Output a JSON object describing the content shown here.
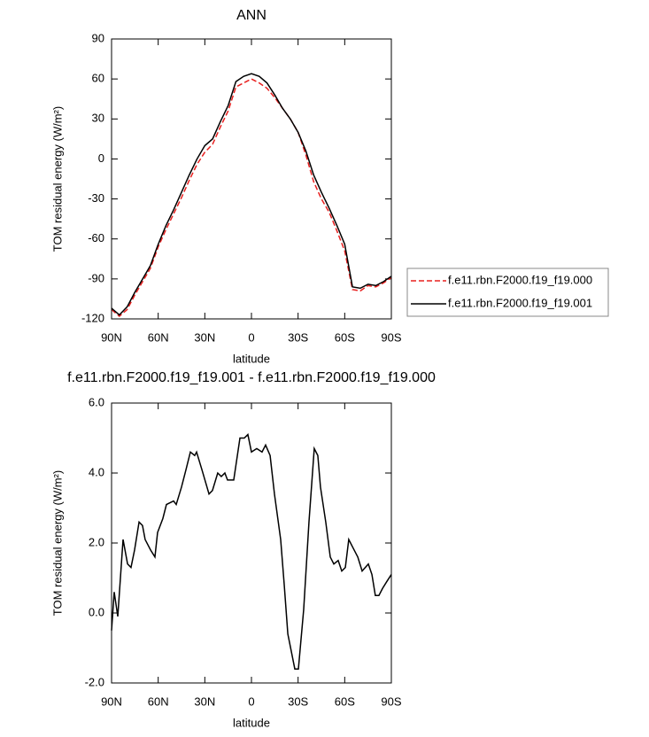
{
  "chart_data": [
    {
      "type": "line",
      "title": "ANN",
      "xlabel": "latitude",
      "ylabel": "TOM residual energy (W/m²)",
      "xlim": [
        90,
        -90
      ],
      "xticks": [
        {
          "value": 90,
          "label": "90N"
        },
        {
          "value": 60,
          "label": "60N"
        },
        {
          "value": 30,
          "label": "30N"
        },
        0,
        {
          "value": -30,
          "label": "30S"
        },
        {
          "value": -60,
          "label": "60S"
        },
        {
          "value": -90,
          "label": "90S"
        }
      ],
      "ylim": [
        -120,
        90
      ],
      "yticks": [
        -120,
        -90,
        -60,
        -30,
        0,
        30,
        60,
        90
      ],
      "legend": "right",
      "x": [
        90,
        85,
        80,
        75,
        70,
        65,
        60,
        55,
        50,
        45,
        40,
        35,
        30,
        25,
        20,
        15,
        10,
        5,
        0,
        -5,
        -10,
        -15,
        -20,
        -25,
        -30,
        -35,
        -40,
        -45,
        -50,
        -55,
        -60,
        -65,
        -70,
        -75,
        -80,
        -85,
        -90
      ],
      "series": [
        {
          "name": "f.e11.rbn.F2000.f19_f19.000",
          "color": "#e8201f",
          "line_style": "dashed",
          "values": [
            -113,
            -118,
            -113,
            -102,
            -92,
            -82,
            -66,
            -53,
            -41,
            -29,
            -16,
            -4,
            5,
            11,
            24,
            36,
            54,
            57,
            60,
            57,
            53,
            46,
            38,
            30,
            20,
            3,
            -17,
            -30,
            -40,
            -54,
            -69,
            -98,
            -99,
            -95,
            -96,
            -93,
            -89
          ]
        },
        {
          "name": "f.e11.rbn.F2000.f19_f19.001",
          "color": "#000000",
          "line_style": "solid",
          "values": [
            -112,
            -117,
            -111,
            -100,
            -90,
            -80,
            -64,
            -50,
            -38,
            -25,
            -12,
            0,
            10,
            15,
            28,
            40,
            58,
            62,
            64,
            62,
            57,
            48,
            38,
            30,
            20,
            6,
            -12,
            -25,
            -37,
            -50,
            -64,
            -96,
            -97,
            -94,
            -95,
            -92,
            -88
          ]
        }
      ]
    },
    {
      "type": "line",
      "title": "f.e11.rbn.F2000.f19_f19.001 - f.e11.rbn.F2000.f19_f19.000",
      "xlabel": "latitude",
      "ylabel": "TOM residual energy (W/m²)",
      "xlim": [
        90,
        -90
      ],
      "xticks": [
        {
          "value": 90,
          "label": "90N"
        },
        {
          "value": 60,
          "label": "60N"
        },
        {
          "value": 30,
          "label": "30N"
        },
        0,
        {
          "value": -30,
          "label": "30S"
        },
        {
          "value": -60,
          "label": "60S"
        },
        {
          "value": -90,
          "label": "90S"
        }
      ],
      "ylim": [
        -2,
        6
      ],
      "yticks": [
        {
          "value": -2,
          "label": "-2.0"
        },
        {
          "value": 0,
          "label": "0.0"
        },
        {
          "value": 2,
          "label": "2.0"
        },
        {
          "value": 4,
          "label": "4.0"
        },
        {
          "value": 6,
          "label": "6.0"
        }
      ],
      "x": [
        90,
        88.3,
        86,
        82.6,
        79.7,
        77.5,
        75.2,
        72.3,
        70.1,
        68.4,
        64.9,
        62.1,
        60.4,
        57,
        54.7,
        50.1,
        48.4,
        45,
        42.1,
        39.3,
        36.5,
        35.3,
        31.9,
        27.3,
        25.1,
        21.7,
        19.4,
        17.1,
        15.4,
        11.4,
        7.4,
        4.6,
        2.3,
        0,
        -3.4,
        -6.8,
        -9.1,
        -12,
        -14.8,
        -18.8,
        -21.1,
        -23.4,
        -27.9,
        -30.2,
        -33.6,
        -37,
        -40.4,
        -42.7,
        -44.4,
        -47.8,
        -50.7,
        -53,
        -55.8,
        -58.1,
        -60.4,
        -62.6,
        -64.9,
        -68.4,
        -71.2,
        -75.2,
        -77.5,
        -79.7,
        -82,
        -84.3,
        -87.1,
        -90
      ],
      "series": [
        {
          "color": "#000000",
          "line_style": "solid",
          "values": [
            -0.5,
            0.6,
            -0.1,
            2.1,
            1.4,
            1.3,
            1.8,
            2.6,
            2.5,
            2.1,
            1.8,
            1.6,
            2.3,
            2.7,
            3.1,
            3.2,
            3.1,
            3.6,
            4.1,
            4.6,
            4.5,
            4.6,
            4.1,
            3.4,
            3.5,
            4.0,
            3.9,
            4.0,
            3.8,
            3.8,
            5.0,
            5.0,
            5.1,
            4.6,
            4.7,
            4.6,
            4.8,
            4.5,
            3.4,
            2.1,
            0.8,
            -0.6,
            -1.6,
            -1.6,
            0.1,
            2.6,
            4.7,
            4.5,
            3.6,
            2.6,
            1.6,
            1.4,
            1.5,
            1.2,
            1.3,
            2.1,
            1.9,
            1.6,
            1.2,
            1.4,
            1.1,
            0.5,
            0.5,
            0.7,
            0.9,
            1.1
          ]
        }
      ]
    }
  ]
}
